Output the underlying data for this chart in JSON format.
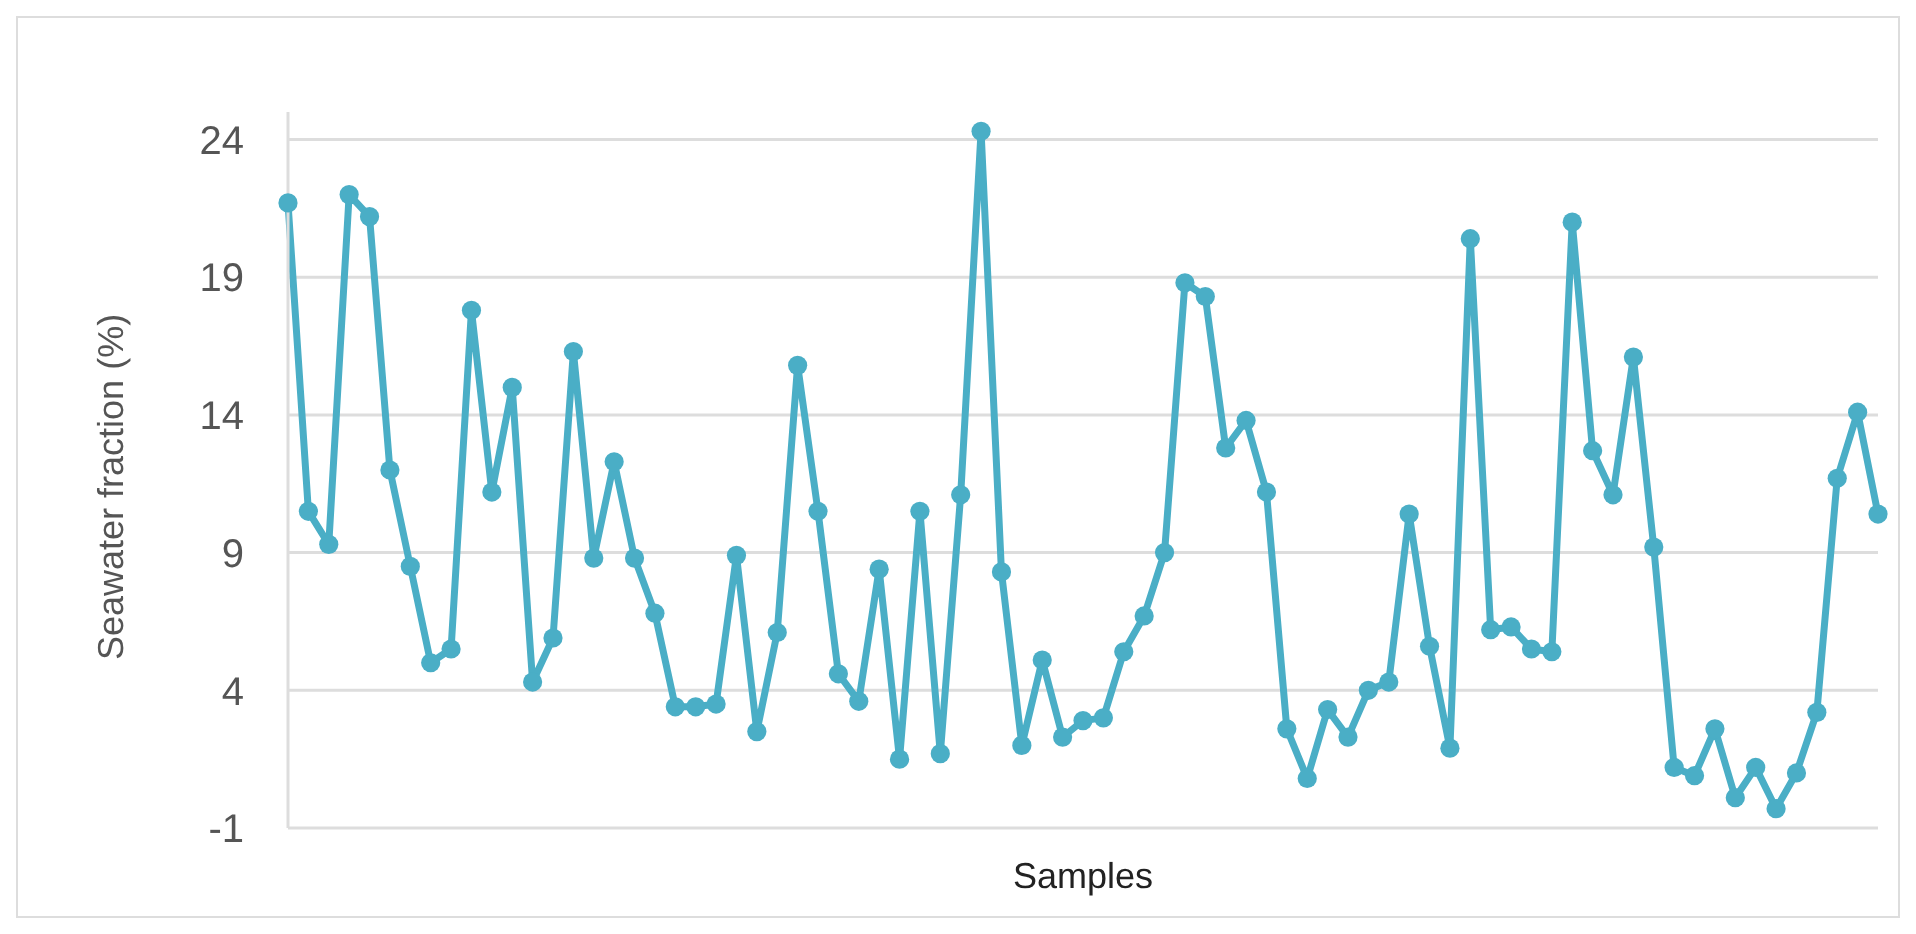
{
  "chart_data": {
    "type": "line",
    "xlabel": "Samples",
    "ylabel": "Seawater fraction (%)",
    "categories": [
      null,
      null,
      null,
      null,
      null,
      null,
      null,
      null,
      null,
      null,
      null,
      null,
      null,
      null,
      null,
      null,
      null,
      null,
      null,
      null,
      null,
      null,
      null,
      null,
      null,
      null,
      null,
      null,
      null,
      null,
      null,
      null,
      null,
      null,
      null,
      null,
      null,
      null,
      null,
      null,
      null,
      null,
      null,
      null,
      null,
      null,
      null,
      null,
      null,
      null,
      null,
      null,
      null,
      null,
      null,
      null,
      null,
      null,
      null,
      null,
      null,
      null,
      null,
      null,
      null,
      null,
      null,
      null,
      null,
      null,
      null,
      null,
      null,
      null,
      null,
      null,
      null,
      null,
      null
    ],
    "series": [
      {
        "color": "#4aaec6",
        "values": [
          21.7,
          10.5,
          9.3,
          22.0,
          21.2,
          12.0,
          8.5,
          5.0,
          5.5,
          17.8,
          11.2,
          15.0,
          4.3,
          5.9,
          16.3,
          8.8,
          12.3,
          8.8,
          6.8,
          3.4,
          3.4,
          3.5,
          8.9,
          2.5,
          6.1,
          15.8,
          10.5,
          4.6,
          3.6,
          8.4,
          1.5,
          10.5,
          1.7,
          11.1,
          24.3,
          8.3,
          2.0,
          5.1,
          2.3,
          2.9,
          3.0,
          5.4,
          6.7,
          9.0,
          18.8,
          18.3,
          12.8,
          13.8,
          11.2,
          2.6,
          0.8,
          3.3,
          2.3,
          4.0,
          4.3,
          10.4,
          5.6,
          1.9,
          20.4,
          6.2,
          6.3,
          5.5,
          5.4,
          21.0,
          12.7,
          11.1,
          16.1,
          9.2,
          1.2,
          0.9,
          2.6,
          0.1,
          1.2,
          -0.3,
          1.0,
          3.2,
          11.7,
          14.1,
          10.4
        ]
      }
    ],
    "ylim": [
      -1,
      25
    ],
    "yticks": [
      -1,
      4,
      9,
      14,
      19,
      24
    ],
    "grid": "y",
    "legend": false,
    "marker": "circle",
    "line_style": "solid"
  }
}
